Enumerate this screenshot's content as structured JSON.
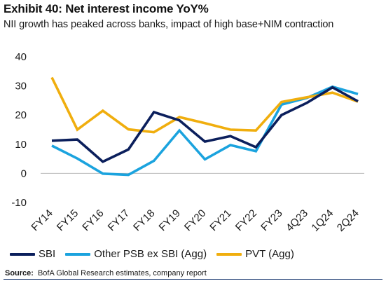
{
  "header": {
    "title": "Exhibit 40: Net interest income YoY%",
    "subtitle": "NII growth has peaked across banks, impact of high base+NIM contraction"
  },
  "colors": {
    "sbi": "#0b1f5c",
    "other_psb": "#1ba3de",
    "pvt": "#f0ae0e"
  },
  "chart_data": {
    "type": "line",
    "title": "Exhibit 40: Net interest income YoY%",
    "subtitle": "NII growth has peaked across banks, impact of high base+NIM contraction",
    "xlabel": "",
    "ylabel": "",
    "ylim": [
      -10,
      40
    ],
    "yticks": [
      -10,
      0,
      10,
      20,
      30,
      40
    ],
    "grid": false,
    "legend_position": "bottom",
    "categories": [
      "FY14",
      "FY15",
      "FY16",
      "FY17",
      "FY18",
      "FY19",
      "FY20",
      "FY21",
      "FY22",
      "FY23",
      "4Q23",
      "1Q24",
      "2Q24"
    ],
    "series": [
      {
        "name": "SBI",
        "color": "#0b1f5c",
        "values": [
          11.2,
          11.6,
          4.0,
          8.2,
          21.0,
          18.2,
          10.9,
          12.8,
          9.0,
          20.0,
          24.2,
          29.5,
          24.7
        ]
      },
      {
        "name": "Other PSB ex SBI (Agg)",
        "color": "#1ba3de",
        "values": [
          9.5,
          5.1,
          -0.1,
          -0.5,
          4.3,
          14.7,
          4.8,
          9.7,
          7.6,
          23.6,
          25.9,
          29.7,
          27.2
        ]
      },
      {
        "name": "PVT (Agg)",
        "color": "#f0ae0e",
        "values": [
          32.9,
          15.0,
          21.5,
          15.1,
          14.1,
          19.3,
          17.2,
          15.0,
          14.7,
          24.5,
          26.1,
          27.7,
          24.6
        ]
      }
    ]
  },
  "source": {
    "label": "Source:",
    "text": "BofA Global Research estimates, company report"
  }
}
